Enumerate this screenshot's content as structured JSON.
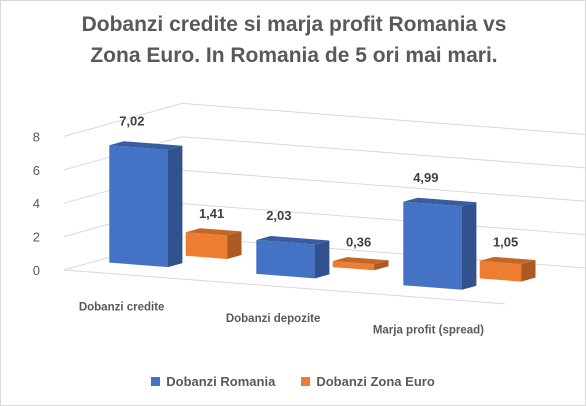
{
  "chart_data": {
    "type": "bar",
    "title": "Dobanzi credite si marja profit Romania vs Zona Euro. In Romania de 5 ori mai mari.",
    "title_line1": "Dobanzi credite si marja profit Romania vs",
    "title_line2": "Zona Euro. In Romania de 5 ori mai mari.",
    "categories": [
      "Dobanzi credite",
      "Dobanzi depozite",
      "Marja profit (spread)"
    ],
    "series": [
      {
        "name": "Dobanzi Romania",
        "values": [
          7.02,
          2.03,
          4.99
        ],
        "labels": [
          "7,02",
          "2,03",
          "4,99"
        ],
        "color": "#4472c4"
      },
      {
        "name": "Dobanzi Zona Euro",
        "values": [
          1.41,
          0.36,
          1.05
        ],
        "labels": [
          "1,41",
          "0,36",
          "1,05"
        ],
        "color": "#ed7d31"
      }
    ],
    "yticks": [
      "0",
      "2",
      "4",
      "6",
      "8"
    ],
    "ylim": [
      0,
      8
    ],
    "grid": true,
    "legend": "bottom",
    "style": "3d-clustered-column"
  }
}
